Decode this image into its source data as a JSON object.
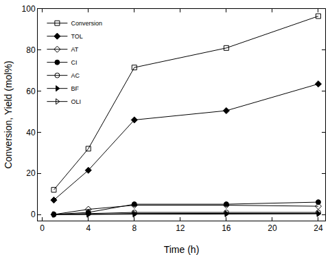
{
  "chart_data": {
    "type": "line",
    "x_label": "Time (h)",
    "y_label": "Conversion, Yield (mol%)",
    "x": [
      1,
      4,
      8,
      16,
      24
    ],
    "series": [
      {
        "name": "Conversion",
        "color": "#000000",
        "marker": "square-open",
        "values": [
          12,
          32,
          71.5,
          81,
          96.5
        ]
      },
      {
        "name": "TOL",
        "color": "#000000",
        "marker": "diamond",
        "values": [
          7,
          21.5,
          46,
          50.5,
          63.5
        ]
      },
      {
        "name": "AT",
        "color": "#000000",
        "marker": "diamond-open",
        "values": [
          0,
          2.5,
          4.5,
          4.5,
          4
        ]
      },
      {
        "name": "CI",
        "color": "#000000",
        "marker": "circle",
        "values": [
          0,
          1,
          5,
          5,
          6
        ]
      },
      {
        "name": "AC",
        "color": "#000000",
        "marker": "circle-open",
        "values": [
          0,
          0.5,
          1,
          1,
          1
        ]
      },
      {
        "name": "BF",
        "color": "#000000",
        "marker": "triangle-right",
        "values": [
          0,
          0,
          0,
          0.2,
          0.3
        ]
      },
      {
        "name": "OLI",
        "color": "#000000",
        "marker": "triangle-right-open",
        "values": [
          0,
          0,
          0.5,
          0.5,
          0.5
        ]
      }
    ],
    "xlim": [
      -0.4,
      24.6
    ],
    "xticks": [
      0,
      4,
      8,
      12,
      16,
      20,
      24
    ],
    "ylim": [
      -3,
      100
    ],
    "yticks": [
      0,
      20,
      40,
      60,
      80,
      100
    ],
    "grid": false,
    "legend": "top-left"
  }
}
